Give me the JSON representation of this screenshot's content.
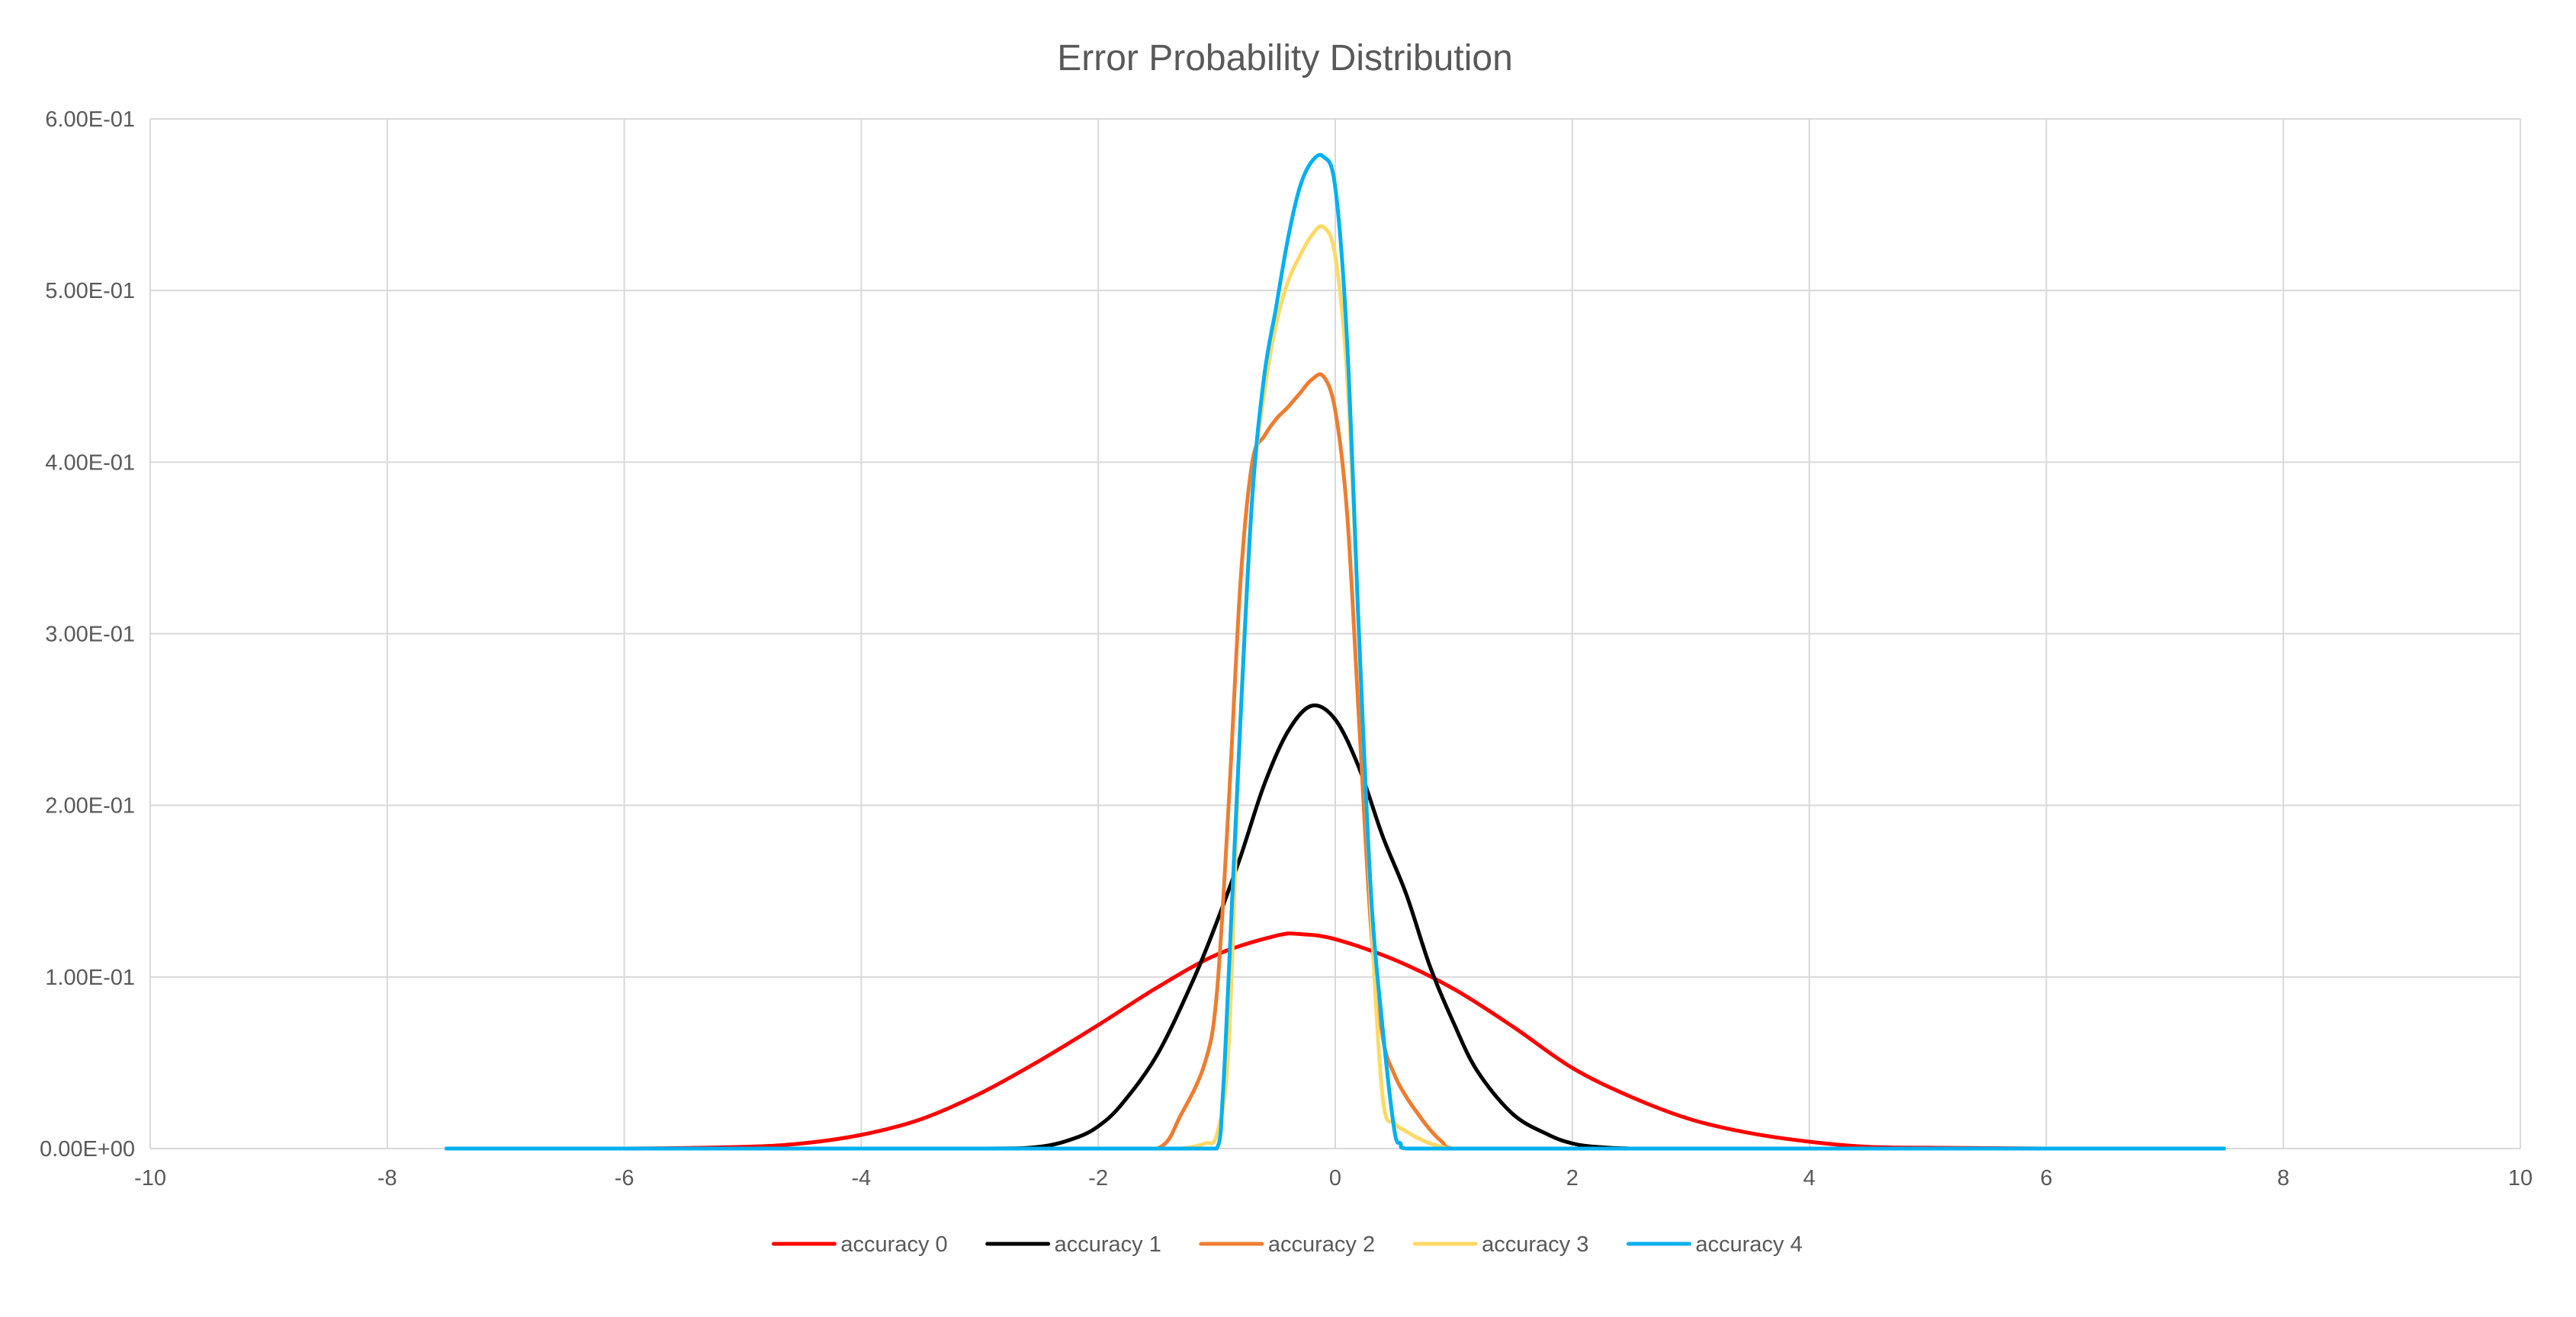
{
  "chart_data": {
    "type": "line",
    "title": "Error Probability Distribution",
    "xlabel": "",
    "ylabel": "",
    "xlim": [
      -10,
      10
    ],
    "ylim": [
      0,
      0.6
    ],
    "x_ticks": [
      -10,
      -8,
      -6,
      -4,
      -2,
      0,
      2,
      4,
      6,
      8,
      10
    ],
    "x_tick_labels": [
      "-10",
      "-8",
      "-6",
      "-4",
      "-2",
      "0",
      "2",
      "4",
      "6",
      "8",
      "10"
    ],
    "y_ticks": [
      0,
      0.1,
      0.2,
      0.3,
      0.4,
      0.5,
      0.6
    ],
    "y_tick_labels": [
      "0.00E+00",
      "1.00E-01",
      "2.00E-01",
      "3.00E-01",
      "4.00E-01",
      "5.00E-01",
      "6.00E-01"
    ],
    "grid": true,
    "legend_position": "bottom",
    "series": [
      {
        "name": "accuracy 0",
        "color": "#ff0000",
        "x": [
          -7.5,
          -6,
          -5,
          -4.5,
          -4,
          -3.5,
          -3,
          -2.5,
          -2,
          -1.5,
          -1,
          -0.5,
          -0.3,
          0,
          0.5,
          1,
          1.5,
          2,
          2.5,
          3,
          3.5,
          4,
          4.5,
          5,
          6,
          7.5
        ],
        "y": [
          0,
          0,
          0.001,
          0.003,
          0.008,
          0.017,
          0.032,
          0.051,
          0.072,
          0.094,
          0.113,
          0.124,
          0.125,
          0.122,
          0.11,
          0.093,
          0.071,
          0.047,
          0.03,
          0.017,
          0.009,
          0.004,
          0.001,
          0.0005,
          0,
          0
        ]
      },
      {
        "name": "accuracy 1",
        "color": "#000000",
        "x": [
          -7.5,
          -5,
          -3,
          -2.5,
          -2.2,
          -2,
          -1.8,
          -1.5,
          -1.2,
          -1,
          -0.8,
          -0.6,
          -0.4,
          -0.2,
          0,
          0.2,
          0.4,
          0.6,
          0.8,
          1,
          1.2,
          1.5,
          1.8,
          2,
          2.2,
          2.5,
          3,
          5,
          7.5
        ],
        "y": [
          0,
          0,
          0,
          0.001,
          0.006,
          0.013,
          0.026,
          0.055,
          0.098,
          0.132,
          0.17,
          0.212,
          0.243,
          0.258,
          0.25,
          0.222,
          0.182,
          0.148,
          0.106,
          0.073,
          0.045,
          0.02,
          0.008,
          0.003,
          0.001,
          0,
          0,
          0,
          0
        ]
      },
      {
        "name": "accuracy 2",
        "color": "#ed7d31",
        "x": [
          -7.5,
          -2,
          -1.5,
          -1.3,
          -1.1,
          -1,
          -0.9,
          -0.8,
          -0.7,
          -0.6,
          -0.5,
          -0.4,
          -0.3,
          -0.2,
          -0.1,
          0,
          0.1,
          0.2,
          0.3,
          0.4,
          0.5,
          0.6,
          0.7,
          0.8,
          0.9,
          1,
          1.5,
          7.5
        ],
        "y": [
          0,
          0,
          0,
          0.02,
          0.05,
          0.09,
          0.2,
          0.33,
          0.4,
          0.415,
          0.425,
          0.432,
          0.44,
          0.448,
          0.45,
          0.43,
          0.37,
          0.25,
          0.13,
          0.065,
          0.043,
          0.03,
          0.02,
          0.011,
          0.004,
          0,
          0,
          0
        ]
      },
      {
        "name": "accuracy 3",
        "color": "#ffd966",
        "x": [
          -7.5,
          -2,
          -1.5,
          -1.3,
          -1.1,
          -1,
          -0.9,
          -0.8,
          -0.7,
          -0.6,
          -0.5,
          -0.4,
          -0.3,
          -0.2,
          -0.1,
          0,
          0.1,
          0.2,
          0.3,
          0.4,
          0.5,
          0.6,
          0.7,
          0.8,
          0.9,
          1,
          1.5,
          7.5
        ],
        "y": [
          0,
          0,
          0,
          0,
          0.003,
          0.008,
          0.06,
          0.25,
          0.38,
          0.44,
          0.48,
          0.505,
          0.52,
          0.532,
          0.537,
          0.52,
          0.45,
          0.3,
          0.14,
          0.03,
          0.015,
          0.01,
          0.006,
          0.003,
          0.001,
          0,
          0,
          0
        ]
      },
      {
        "name": "accuracy 4",
        "color": "#00b0f0",
        "x": [
          -7.5,
          -2,
          -1.2,
          -1,
          -0.95,
          -0.9,
          -0.8,
          -0.7,
          -0.6,
          -0.5,
          -0.4,
          -0.3,
          -0.2,
          -0.1,
          0,
          0.1,
          0.2,
          0.3,
          0.4,
          0.5,
          0.55,
          0.6,
          1,
          2,
          7.5
        ],
        "y": [
          0,
          0,
          0,
          0,
          0.03,
          0.1,
          0.25,
          0.38,
          0.45,
          0.49,
          0.53,
          0.56,
          0.575,
          0.578,
          0.56,
          0.47,
          0.3,
          0.15,
          0.07,
          0.01,
          0.003,
          0,
          0,
          0,
          0
        ]
      }
    ]
  }
}
